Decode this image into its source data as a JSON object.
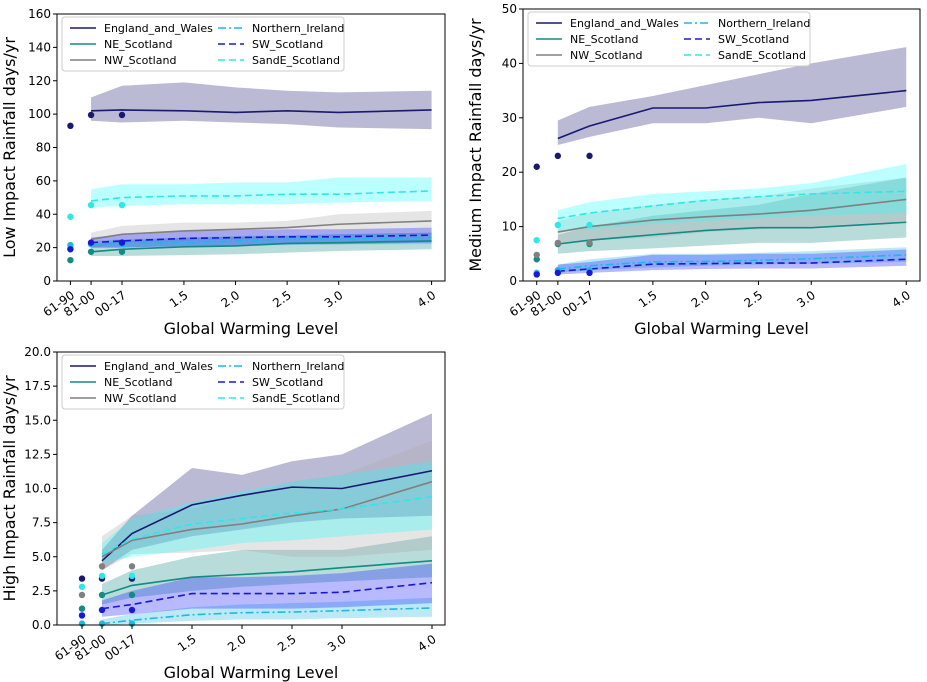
{
  "chart_data": [
    {
      "type": "line",
      "xlabel": "Global Warming Level",
      "ylabel": "Low Impact Rainfall days/yr",
      "ylim": [
        0,
        160
      ],
      "yticks": [
        "0",
        "20",
        "40",
        "60",
        "80",
        "100",
        "120",
        "140",
        "160"
      ],
      "x_categories": [
        "61-90",
        "81-00",
        "00-17",
        "1.5",
        "2.0",
        "2.5",
        "3.0",
        "4.0"
      ],
      "x_positions": [
        1.0,
        1.2,
        1.5,
        2.1,
        2.6,
        3.1,
        3.6,
        4.5
      ],
      "line_x": [
        1.2,
        1.5,
        2.1,
        2.6,
        3.1,
        3.6,
        4.5
      ],
      "legend_position": "top-left",
      "series": [
        {
          "name": "England_and_Wales",
          "color": "#191970",
          "dash": "solid",
          "band_color": "#191970",
          "values": [
            102,
            102.5,
            102,
            101,
            102,
            101,
            102.5
          ],
          "lower": [
            96,
            95,
            96,
            95,
            94,
            92,
            91
          ],
          "upper": [
            110,
            117,
            119,
            116,
            114,
            113,
            114
          ],
          "obs": [
            93,
            99.5,
            99.5
          ]
        },
        {
          "name": "NE_Scotland",
          "color": "#138a83",
          "dash": "solid",
          "band_color": "#138a83",
          "values": [
            17.5,
            19,
            20.5,
            21,
            22.5,
            23,
            24
          ],
          "lower": [
            15,
            15,
            15.5,
            16,
            17,
            18,
            19
          ],
          "upper": [
            22,
            24,
            26,
            26.5,
            27,
            28,
            29
          ],
          "obs": [
            12.5,
            17.5,
            17.5
          ]
        },
        {
          "name": "NW_Scotland",
          "color": "#808080",
          "dash": "solid",
          "band_color": "#a9a9a9",
          "values": [
            25,
            28,
            30,
            31,
            32,
            34,
            36
          ],
          "lower": [
            20,
            23,
            24,
            25,
            26,
            27,
            28
          ],
          "upper": [
            29,
            33,
            35,
            35,
            36,
            40,
            42
          ],
          "obs": [
            19.5,
            22.5,
            22.5
          ]
        },
        {
          "name": "Northern_Ireland",
          "color": "#1fb8e0",
          "dash": "dashdot",
          "band_color": "#1fb8e0",
          "values": [
            22,
            22.5,
            23,
            24,
            25,
            25.5,
            26
          ],
          "lower": [
            20,
            20,
            20.5,
            21,
            21.5,
            22,
            22
          ],
          "upper": [
            24,
            25,
            26,
            27,
            27.5,
            28,
            29
          ],
          "obs": [
            21.5,
            22,
            22
          ]
        },
        {
          "name": "SW_Scotland",
          "color": "#1818d8",
          "dash": "dashed",
          "band_color": "#1818ff",
          "values": [
            23,
            24,
            25.5,
            26,
            26.5,
            26.5,
            27.5
          ],
          "lower": [
            20,
            20,
            21,
            21,
            22,
            22,
            23
          ],
          "upper": [
            26,
            28,
            30,
            30.5,
            31,
            31,
            32
          ],
          "obs": [
            19,
            23,
            23
          ]
        },
        {
          "name": "SandE_Scotland",
          "color": "#2ee8e8",
          "dash": "dashed",
          "band_color": "#22ffff",
          "values": [
            48,
            50,
            51,
            51,
            52,
            52,
            54
          ],
          "lower": [
            44,
            45,
            46,
            46,
            46,
            47,
            48
          ],
          "upper": [
            55,
            58,
            58,
            59,
            59,
            62,
            62
          ],
          "obs": [
            38.5,
            45.5,
            45.5
          ]
        }
      ]
    },
    {
      "type": "line",
      "xlabel": "Global Warming Level",
      "ylabel": "Medium Impact Rainfall days/yr",
      "ylim": [
        0,
        50
      ],
      "yticks": [
        "0",
        "10",
        "20",
        "30",
        "40",
        "50"
      ],
      "x_categories": [
        "61-90",
        "81-00",
        "00-17",
        "1.5",
        "2.0",
        "2.5",
        "3.0",
        "4.0"
      ],
      "x_positions": [
        1.0,
        1.2,
        1.5,
        2.1,
        2.6,
        3.1,
        3.6,
        4.5
      ],
      "line_x": [
        1.2,
        1.5,
        2.1,
        2.6,
        3.1,
        3.6,
        4.5
      ],
      "legend_position": "top-left",
      "series": [
        {
          "name": "England_and_Wales",
          "color": "#191970",
          "dash": "solid",
          "band_color": "#191970",
          "values": [
            26.2,
            28.5,
            31.8,
            31.8,
            32.8,
            33.2,
            35
          ],
          "lower": [
            25,
            26.5,
            29,
            29,
            30,
            29,
            32
          ],
          "upper": [
            29.5,
            32,
            34,
            36,
            38,
            40,
            43
          ],
          "obs": [
            21,
            23,
            23
          ]
        },
        {
          "name": "NE_Scotland",
          "color": "#138a83",
          "dash": "solid",
          "band_color": "#138a83",
          "values": [
            6.8,
            7.5,
            8.5,
            9.3,
            9.8,
            9.8,
            10.8
          ],
          "lower": [
            5,
            5.5,
            6,
            6.5,
            7,
            7,
            8
          ],
          "upper": [
            8.5,
            10,
            12,
            13,
            14,
            16,
            19
          ],
          "obs": [
            4,
            6.8,
            6.8
          ]
        },
        {
          "name": "NW_Scotland",
          "color": "#808080",
          "dash": "solid",
          "band_color": "#a9a9a9",
          "values": [
            9,
            10,
            11.2,
            11.8,
            12.3,
            13,
            15
          ],
          "lower": [
            7,
            7.5,
            8,
            9,
            9.5,
            10,
            11
          ],
          "upper": [
            11,
            12.5,
            14,
            15,
            15.5,
            17,
            19
          ],
          "obs": [
            4.8,
            7,
            7
          ]
        },
        {
          "name": "Northern_Ireland",
          "color": "#1fb8e0",
          "dash": "dashdot",
          "band_color": "#1fb8e0",
          "values": [
            2.2,
            2.8,
            3.5,
            3.6,
            3.8,
            4.1,
            4.8
          ],
          "lower": [
            1.5,
            2,
            2.5,
            2.8,
            3,
            3.2,
            3.5
          ],
          "upper": [
            3,
            4,
            5,
            5,
            5.2,
            5.5,
            6.2
          ],
          "obs": [
            1.5,
            2,
            2
          ]
        },
        {
          "name": "SW_Scotland",
          "color": "#1818d8",
          "dash": "dashed",
          "band_color": "#1818ff",
          "values": [
            1.8,
            2.2,
            3.1,
            3.2,
            3.3,
            3.3,
            4
          ],
          "lower": [
            1.2,
            1.5,
            2,
            2.2,
            2.3,
            2.3,
            2.8
          ],
          "upper": [
            3,
            3.5,
            4.8,
            4.8,
            5,
            5,
            5.8
          ],
          "obs": [
            1.2,
            1.5,
            1.5
          ]
        },
        {
          "name": "SandE_Scotland",
          "color": "#2ee8e8",
          "dash": "dashed",
          "band_color": "#22ffff",
          "values": [
            11.5,
            12.5,
            13.8,
            14.8,
            15.5,
            16,
            16.5
          ],
          "lower": [
            9,
            9.5,
            10.5,
            11,
            11.5,
            12,
            12.5
          ],
          "upper": [
            13,
            14.5,
            16,
            16.5,
            17,
            18,
            21.5
          ],
          "obs": [
            7.5,
            10.3,
            10.3
          ]
        }
      ]
    },
    {
      "type": "line",
      "xlabel": "Global Warming Level",
      "ylabel": "High Impact Rainfall days/yr",
      "ylim": [
        0,
        20
      ],
      "yticks": [
        "0.0",
        "2.5",
        "5.0",
        "7.5",
        "10.0",
        "12.5",
        "15.0",
        "17.5",
        "20.0"
      ],
      "x_categories": [
        "61-90",
        "81-00",
        "00-17",
        "1.5",
        "2.0",
        "2.5",
        "3.0",
        "4.0"
      ],
      "x_positions": [
        1.0,
        1.2,
        1.5,
        2.1,
        2.6,
        3.1,
        3.6,
        4.5
      ],
      "line_x": [
        1.2,
        1.5,
        2.1,
        2.6,
        3.1,
        3.6,
        4.5
      ],
      "legend_position": "top-left",
      "series": [
        {
          "name": "England_and_Wales",
          "color": "#191970",
          "dash": "solid",
          "band_color": "#191970",
          "values": [
            4.7,
            6.7,
            8.8,
            9.5,
            10.1,
            10.0,
            11.3
          ],
          "lower": [
            4,
            5.5,
            6.5,
            7,
            7.5,
            7.8,
            8
          ],
          "upper": [
            5.5,
            8,
            11.5,
            11,
            12,
            12.5,
            15.5
          ],
          "obs": [
            3.4,
            3.4,
            3.4
          ]
        },
        {
          "name": "NE_Scotland",
          "color": "#138a83",
          "dash": "solid",
          "band_color": "#138a83",
          "values": [
            2.2,
            2.9,
            3.5,
            3.7,
            3.9,
            4.2,
            4.7
          ],
          "lower": [
            1.5,
            2,
            2.5,
            2.8,
            3,
            3.2,
            3.5
          ],
          "upper": [
            3,
            4,
            5,
            5.5,
            5.5,
            5.5,
            6.5
          ],
          "obs": [
            1.2,
            2.2,
            2.2
          ]
        },
        {
          "name": "NW_Scotland",
          "color": "#808080",
          "dash": "solid",
          "band_color": "#a9a9a9",
          "values": [
            5,
            6.2,
            7.0,
            7.4,
            8.0,
            8.5,
            10.5
          ],
          "lower": [
            4,
            5.2,
            5.3,
            5.5,
            5,
            5,
            5.5
          ],
          "upper": [
            6.5,
            8,
            8.5,
            9.5,
            10.5,
            11,
            13.5
          ],
          "obs": [
            2.2,
            4.3,
            4.3
          ]
        },
        {
          "name": "Northern_Ireland",
          "color": "#1fb8e0",
          "dash": "dashdot",
          "band_color": "#1fb8e0",
          "values": [
            0.1,
            0.35,
            0.75,
            0.9,
            0.95,
            1.05,
            1.25
          ],
          "lower": [
            0,
            0.1,
            0.3,
            0.4,
            0.4,
            0.5,
            0.6
          ],
          "upper": [
            0.4,
            0.8,
            1.3,
            1.5,
            1.6,
            1.7,
            2
          ],
          "obs": [
            0.1,
            0.1,
            0.1
          ]
        },
        {
          "name": "SW_Scotland",
          "color": "#1818d8",
          "dash": "dashed",
          "band_color": "#1818ff",
          "values": [
            1.2,
            1.5,
            2.3,
            2.3,
            2.3,
            2.4,
            3.1
          ],
          "lower": [
            0.6,
            0.8,
            1.2,
            1.2,
            1.2,
            1.3,
            1.6
          ],
          "upper": [
            1.8,
            2.5,
            3.5,
            3.5,
            3.6,
            3.8,
            4.5
          ],
          "obs": [
            0.7,
            1.1,
            1.1
          ]
        },
        {
          "name": "SandE_Scotland",
          "color": "#2ee8e8",
          "dash": "dashed",
          "band_color": "#22ffff",
          "values": [
            5.2,
            6.3,
            7.4,
            7.8,
            8.2,
            8.5,
            9.4
          ],
          "lower": [
            4.5,
            5,
            5.5,
            6,
            6.2,
            6.5,
            7
          ],
          "upper": [
            6,
            7.8,
            9,
            9.8,
            10.5,
            11,
            12
          ],
          "obs": [
            2.8,
            3.6,
            3.6
          ]
        }
      ]
    }
  ]
}
